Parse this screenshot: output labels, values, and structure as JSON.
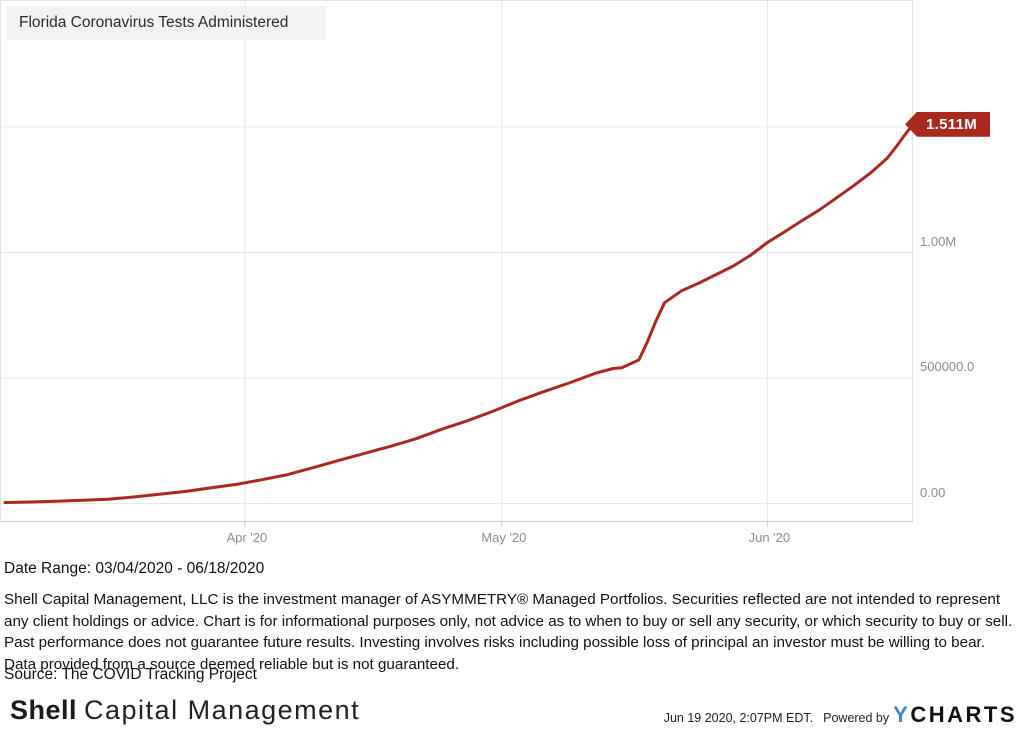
{
  "chart": {
    "title": "Florida Coronavirus Tests Administered",
    "last_value_label": "1.511M",
    "line_color": "#a9291f",
    "tag_color": "#a9291f"
  },
  "chart_data": {
    "type": "line",
    "title": "Florida Coronavirus Tests Administered",
    "xlabel": "",
    "ylabel": "Tests Administered",
    "x_start": "2020-03-04",
    "x_end": "2020-06-18",
    "ylim": [
      0,
      1560000
    ],
    "grid": true,
    "legend": "none",
    "y_axis_side": "right",
    "y_gridlines": [
      0,
      500000,
      1000000,
      1500000
    ],
    "y_ticks": [
      {
        "value": 1000000,
        "label": "1.00M"
      },
      {
        "value": 500000,
        "label": "500000.0"
      },
      {
        "value": 0,
        "label": "0.00"
      }
    ],
    "x_ticks": [
      {
        "date": "2020-04-01",
        "label": "Apr '20"
      },
      {
        "date": "2020-05-01",
        "label": "May '20"
      },
      {
        "date": "2020-06-01",
        "label": "Jun '20"
      }
    ],
    "series": [
      {
        "name": "Florida Coronavirus Tests Administered",
        "color": "#a9291f",
        "last_value": 1511000,
        "last_value_label": "1.511M",
        "points": [
          [
            "2020-03-04",
            4000
          ],
          [
            "2020-03-07",
            6000
          ],
          [
            "2020-03-10",
            9000
          ],
          [
            "2020-03-13",
            13000
          ],
          [
            "2020-03-16",
            17000
          ],
          [
            "2020-03-19",
            26000
          ],
          [
            "2020-03-22",
            37000
          ],
          [
            "2020-03-25",
            48000
          ],
          [
            "2020-03-28",
            62000
          ],
          [
            "2020-03-31",
            76000
          ],
          [
            "2020-04-03",
            95000
          ],
          [
            "2020-04-06",
            115000
          ],
          [
            "2020-04-09",
            143000
          ],
          [
            "2020-04-12",
            172000
          ],
          [
            "2020-04-15",
            200000
          ],
          [
            "2020-04-18",
            228000
          ],
          [
            "2020-04-21",
            258000
          ],
          [
            "2020-04-24",
            296000
          ],
          [
            "2020-04-27",
            330000
          ],
          [
            "2020-04-30",
            368000
          ],
          [
            "2020-05-03",
            410000
          ],
          [
            "2020-05-06",
            447000
          ],
          [
            "2020-05-09",
            482000
          ],
          [
            "2020-05-12",
            520000
          ],
          [
            "2020-05-14",
            538000
          ],
          [
            "2020-05-15",
            541000
          ],
          [
            "2020-05-17",
            572000
          ],
          [
            "2020-05-18",
            645000
          ],
          [
            "2020-05-19",
            728000
          ],
          [
            "2020-05-20",
            800000
          ],
          [
            "2020-05-22",
            848000
          ],
          [
            "2020-05-24",
            878000
          ],
          [
            "2020-05-26",
            912000
          ],
          [
            "2020-05-28",
            946000
          ],
          [
            "2020-05-30",
            988000
          ],
          [
            "2020-06-01",
            1040000
          ],
          [
            "2020-06-03",
            1082000
          ],
          [
            "2020-06-05",
            1126000
          ],
          [
            "2020-06-07",
            1168000
          ],
          [
            "2020-06-09",
            1216000
          ],
          [
            "2020-06-11",
            1264000
          ],
          [
            "2020-06-13",
            1316000
          ],
          [
            "2020-06-15",
            1376000
          ],
          [
            "2020-06-16",
            1420000
          ],
          [
            "2020-06-17",
            1466000
          ],
          [
            "2020-06-18",
            1511000
          ]
        ]
      }
    ]
  },
  "footer": {
    "date_range": "Date Range: 03/04/2020 - 06/18/2020",
    "disclaimer": "Shell Capital Management, LLC is the investment manager of ASYMMETRY® Managed Portfolios. Securities reflected are not intended to represent any client holdings or advice. Chart is for informational purposes only, not advice as to when to buy or sell any security, or which security to buy or sell. Past performance does not guarantee future results. Investing involves risks including possible loss of principal an investor must be willing to bear. Data provided from a source deemed reliable but is not guaranteed.",
    "source": "Source: The COVID Tracking Project",
    "logo": {
      "bold": "Shell",
      "rest": "Capital Management"
    },
    "timestamp": "Jun 19 2020, 2:07PM EDT.",
    "powered_by": "Powered by",
    "ycharts": {
      "y": "Y",
      "charts": "CHARTS",
      "y_color": "#4285c8"
    }
  }
}
